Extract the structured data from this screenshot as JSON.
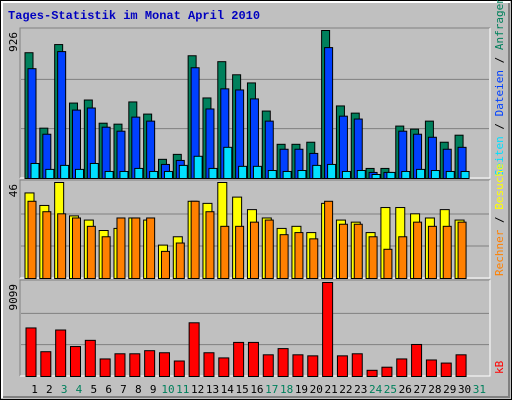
{
  "chart_data": [
    {
      "type": "bar",
      "title": "Tages-Statistik im Monat April 2010",
      "ylim": [
        0,
        926
      ],
      "yticks": [
        926
      ],
      "legend_separator": " / ",
      "series": [
        {
          "name": "Anfragen",
          "color": "#00805c",
          "values": [
            787,
            315,
            838,
            472,
            491,
            346,
            340,
            479,
            403,
            120,
            151,
            768,
            504,
            731,
            649,
            598,
            422,
            214,
            214,
            227,
            926,
            454,
            409,
            63,
            63,
            328,
            309,
            359,
            227,
            271,
            null
          ]
        },
        {
          "name": "Dateien",
          "color": "#0040ff",
          "values": [
            687,
            277,
            794,
            428,
            441,
            321,
            296,
            384,
            359,
            88,
            113,
            693,
            435,
            561,
            554,
            498,
            359,
            183,
            183,
            157,
            819,
            390,
            372,
            38,
            38,
            296,
            277,
            258,
            183,
            195,
            null
          ]
        },
        {
          "name": "Seiten",
          "color": "#00e0ff",
          "values": [
            94,
            57,
            82,
            57,
            94,
            44,
            44,
            63,
            44,
            44,
            82,
            139,
            63,
            195,
            76,
            76,
            50,
            44,
            50,
            82,
            88,
            44,
            50,
            25,
            38,
            44,
            57,
            50,
            44,
            44,
            null
          ]
        }
      ]
    },
    {
      "type": "bar",
      "ylim": [
        0,
        46
      ],
      "yticks": [
        46
      ],
      "legend_separator": " / ",
      "series": [
        {
          "name": "Besuche",
          "color": "#ffff00",
          "values": [
            41,
            35,
            46,
            30,
            28,
            23,
            24,
            29,
            28,
            16,
            20,
            37,
            36,
            46,
            39,
            33,
            29,
            24,
            25,
            22,
            36,
            28,
            27,
            22,
            34,
            34,
            31,
            29,
            33,
            28,
            null
          ]
        },
        {
          "name": "Rechner",
          "color": "#ff8000",
          "values": [
            37,
            32,
            31,
            29,
            25,
            20,
            29,
            29,
            29,
            13,
            17,
            37,
            32,
            25,
            25,
            27,
            28,
            21,
            22,
            19,
            37,
            26,
            26,
            20,
            14,
            20,
            27,
            25,
            25,
            27,
            null
          ]
        }
      ]
    },
    {
      "type": "bar",
      "ylim": [
        0,
        9099
      ],
      "yticks": [
        9099
      ],
      "categories": [
        "1",
        "2",
        "3",
        "4",
        "5",
        "6",
        "7",
        "8",
        "9",
        "10",
        "11",
        "12",
        "13",
        "14",
        "15",
        "16",
        "17",
        "18",
        "19",
        "20",
        "21",
        "22",
        "23",
        "24",
        "25",
        "26",
        "27",
        "28",
        "29",
        "30",
        "31"
      ],
      "category_colors": [
        "#000000",
        "#000000",
        "#00805c",
        "#00805c",
        "#000000",
        "#000000",
        "#000000",
        "#000000",
        "#000000",
        "#00805c",
        "#00805c",
        "#000000",
        "#000000",
        "#000000",
        "#000000",
        "#000000",
        "#00805c",
        "#00805c",
        "#000000",
        "#000000",
        "#000000",
        "#000000",
        "#000000",
        "#00805c",
        "#00805c",
        "#000000",
        "#000000",
        "#000000",
        "#000000",
        "#000000",
        "#00805c"
      ],
      "series": [
        {
          "name": "kB",
          "color": "#ff0000",
          "values": [
            4700,
            2400,
            4500,
            2900,
            3500,
            1700,
            2200,
            2200,
            2500,
            2300,
            1500,
            5200,
            2300,
            1800,
            3300,
            3300,
            2100,
            2700,
            2100,
            2000,
            9099,
            2000,
            2200,
            600,
            900,
            1700,
            3100,
            1600,
            1300,
            2100,
            null
          ]
        }
      ]
    }
  ]
}
